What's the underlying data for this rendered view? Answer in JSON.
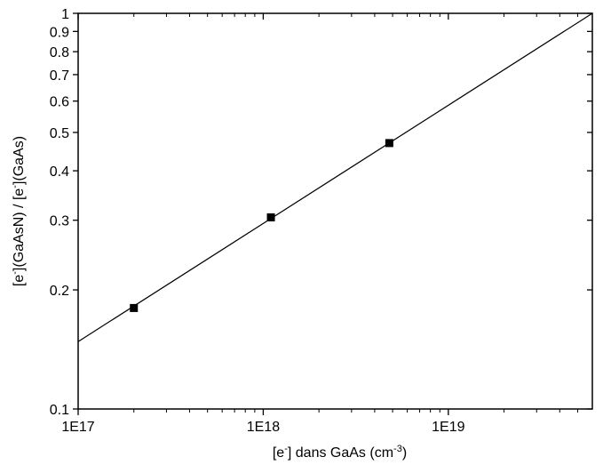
{
  "chart_data": {
    "type": "scatter",
    "title": "",
    "xlabel": {
      "parts": [
        {
          "text": "[e",
          "sup": false
        },
        {
          "text": "-",
          "sup": true
        },
        {
          "text": "] dans GaAs (cm",
          "sup": false
        },
        {
          "text": "-3",
          "sup": true
        },
        {
          "text": ")",
          "sup": false
        }
      ]
    },
    "ylabel": {
      "parts": [
        {
          "text": "[e",
          "sup": false
        },
        {
          "text": "-",
          "sup": true
        },
        {
          "text": "](GaAsN) / [e",
          "sup": false
        },
        {
          "text": "-",
          "sup": true
        },
        {
          "text": "](GaAs)",
          "sup": false
        }
      ]
    },
    "x_scale": "log",
    "y_scale": "log",
    "xlim": [
      1e+17,
      6e+19
    ],
    "ylim": [
      0.1,
      1
    ],
    "x_ticks": [
      {
        "value": 1e+17,
        "label": "1E17"
      },
      {
        "value": 1e+18,
        "label": "1E18"
      },
      {
        "value": 1e+19,
        "label": "1E19"
      }
    ],
    "y_ticks": [
      {
        "value": 0.1,
        "label": "0.1"
      },
      {
        "value": 0.2,
        "label": "0.2"
      },
      {
        "value": 0.3,
        "label": "0.3"
      },
      {
        "value": 0.4,
        "label": "0.4"
      },
      {
        "value": 0.5,
        "label": "0.5"
      },
      {
        "value": 0.6,
        "label": "0.6"
      },
      {
        "value": 0.7,
        "label": "0.7"
      },
      {
        "value": 0.8,
        "label": "0.8"
      },
      {
        "value": 0.9,
        "label": "0.9"
      },
      {
        "value": 1,
        "label": "1"
      }
    ],
    "grid": false,
    "legend": "none",
    "series": [
      {
        "kind": "points",
        "marker": "square",
        "color": "#000000",
        "points": [
          {
            "x": 2e+17,
            "y": 0.18
          },
          {
            "x": 1.1e+18,
            "y": 0.305
          },
          {
            "x": 4.8e+18,
            "y": 0.47
          }
        ]
      },
      {
        "kind": "fit-line",
        "color": "#000000",
        "points": [
          {
            "x": 1e+17,
            "y": 0.148
          },
          {
            "x": 6e+19,
            "y": 1.0
          }
        ]
      }
    ]
  }
}
